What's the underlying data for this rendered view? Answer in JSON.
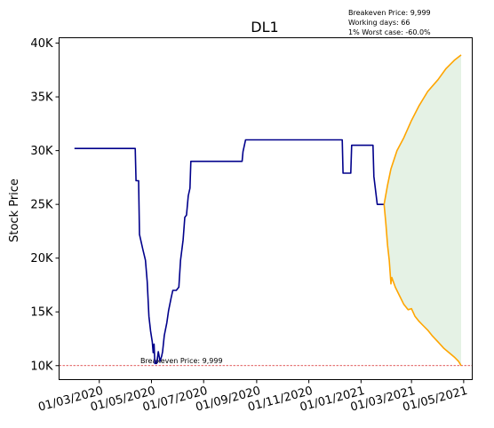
{
  "chart_data": {
    "type": "line",
    "title": "DL1",
    "xlabel": "",
    "ylabel": "Stock Price",
    "ylim": [
      8700,
      40500
    ],
    "grid": false,
    "legend": "none",
    "info_lines": [
      "Breakeven Price: 9,999",
      "Working days: 66",
      "1% Worst case: -60.0%"
    ],
    "x_ticks": [
      "01/03/2020",
      "01/05/2020",
      "01/07/2020",
      "01/09/2020",
      "01/11/2020",
      "01/01/2021",
      "01/03/2021",
      "01/05/2021"
    ],
    "y_ticks": [
      {
        "value": 10000,
        "label": "10K"
      },
      {
        "value": 15000,
        "label": "15K"
      },
      {
        "value": 20000,
        "label": "20K"
      },
      {
        "value": 25000,
        "label": "25K"
      },
      {
        "value": 30000,
        "label": "30K"
      },
      {
        "value": 35000,
        "label": "35K"
      },
      {
        "value": 40000,
        "label": "40K"
      }
    ],
    "breakeven": {
      "value": 9999,
      "label": "Breakeven Price: 9,999",
      "label_date": "2020-04-18",
      "color": "#d62728"
    },
    "series": [
      {
        "role": "history",
        "color": "#00008b",
        "points": [
          [
            "2020-02-01",
            30200
          ],
          [
            "2020-03-10",
            30200
          ],
          [
            "2020-04-12",
            30200
          ],
          [
            "2020-04-13",
            27200
          ],
          [
            "2020-04-16",
            27200
          ],
          [
            "2020-04-17",
            22200
          ],
          [
            "2020-04-21",
            20800
          ],
          [
            "2020-04-24",
            19800
          ],
          [
            "2020-04-26",
            17800
          ],
          [
            "2020-04-28",
            14600
          ],
          [
            "2020-04-30",
            13200
          ],
          [
            "2020-05-02",
            12200
          ],
          [
            "2020-05-03",
            11200
          ],
          [
            "2020-05-04",
            12000
          ],
          [
            "2020-05-05",
            10200
          ],
          [
            "2020-05-07",
            10200
          ],
          [
            "2020-05-09",
            11300
          ],
          [
            "2020-05-11",
            10400
          ],
          [
            "2020-05-13",
            10900
          ],
          [
            "2020-05-14",
            11300
          ],
          [
            "2020-05-16",
            12800
          ],
          [
            "2020-05-19",
            14000
          ],
          [
            "2020-05-21",
            15100
          ],
          [
            "2020-05-24",
            16300
          ],
          [
            "2020-05-26",
            17000
          ],
          [
            "2020-05-30",
            17000
          ],
          [
            "2020-06-02",
            17300
          ],
          [
            "2020-06-04",
            19800
          ],
          [
            "2020-06-07",
            21700
          ],
          [
            "2020-06-09",
            23800
          ],
          [
            "2020-06-11",
            24000
          ],
          [
            "2020-06-13",
            25800
          ],
          [
            "2020-06-15",
            26500
          ],
          [
            "2020-06-16",
            29000
          ],
          [
            "2020-07-01",
            29000
          ],
          [
            "2020-08-15",
            29000
          ],
          [
            "2020-08-16",
            29900
          ],
          [
            "2020-08-19",
            31000
          ],
          [
            "2020-10-01",
            31000
          ],
          [
            "2020-12-10",
            31000
          ],
          [
            "2020-12-11",
            27900
          ],
          [
            "2020-12-20",
            27900
          ],
          [
            "2020-12-21",
            30500
          ],
          [
            "2021-01-15",
            30500
          ],
          [
            "2021-01-16",
            27600
          ],
          [
            "2021-01-20",
            25000
          ],
          [
            "2021-01-28",
            25000
          ]
        ]
      },
      {
        "role": "upper",
        "color": "#ffa500",
        "points": [
          [
            "2021-01-28",
            25000
          ],
          [
            "2021-02-01",
            26800
          ],
          [
            "2021-02-05",
            28300
          ],
          [
            "2021-02-12",
            30000
          ],
          [
            "2021-02-20",
            31200
          ],
          [
            "2021-03-01",
            32800
          ],
          [
            "2021-03-10",
            34200
          ],
          [
            "2021-03-20",
            35500
          ],
          [
            "2021-04-01",
            36600
          ],
          [
            "2021-04-10",
            37600
          ],
          [
            "2021-04-20",
            38400
          ],
          [
            "2021-04-28",
            38900
          ]
        ]
      },
      {
        "role": "lower",
        "color": "#ffa500",
        "points": [
          [
            "2021-01-28",
            25000
          ],
          [
            "2021-01-30",
            23200
          ],
          [
            "2021-02-01",
            21200
          ],
          [
            "2021-02-03",
            19800
          ],
          [
            "2021-02-05",
            17600
          ],
          [
            "2021-02-06",
            18200
          ],
          [
            "2021-02-10",
            17300
          ],
          [
            "2021-02-15",
            16500
          ],
          [
            "2021-02-20",
            15700
          ],
          [
            "2021-02-25",
            15200
          ],
          [
            "2021-03-01",
            15300
          ],
          [
            "2021-03-05",
            14600
          ],
          [
            "2021-03-10",
            14100
          ],
          [
            "2021-03-15",
            13700
          ],
          [
            "2021-03-20",
            13300
          ],
          [
            "2021-03-25",
            12800
          ],
          [
            "2021-04-01",
            12200
          ],
          [
            "2021-04-08",
            11600
          ],
          [
            "2021-04-14",
            11200
          ],
          [
            "2021-04-20",
            10800
          ],
          [
            "2021-04-25",
            10400
          ],
          [
            "2021-04-28",
            10000
          ]
        ]
      }
    ],
    "band_fill": "#e5f2e5"
  }
}
